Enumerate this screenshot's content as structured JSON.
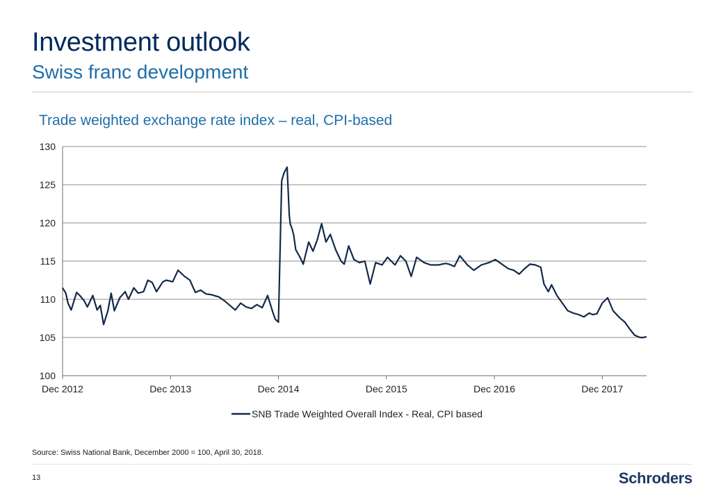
{
  "header": {
    "title": "Investment outlook",
    "subtitle": "Swiss franc development"
  },
  "chart_title": "Trade weighted exchange rate index – real, CPI-based",
  "colors": {
    "line": "#13294b",
    "grid": "#8c8c8c",
    "accent": "#1f6ea8"
  },
  "chart_data": {
    "type": "line",
    "title": "Trade weighted exchange rate index – real, CPI-based",
    "xlabel": "",
    "ylabel": "",
    "ylim": [
      100,
      130
    ],
    "yticks": [
      100,
      105,
      110,
      115,
      120,
      125,
      130
    ],
    "xlim": [
      2012.92,
      2018.33
    ],
    "xtick_labels": [
      "Dec 2012",
      "Dec 2013",
      "Dec 2014",
      "Dec 2015",
      "Dec 2016",
      "Dec 2017"
    ],
    "xtick_positions": [
      2012.92,
      2013.92,
      2014.92,
      2015.92,
      2016.92,
      2017.92
    ],
    "grid": true,
    "legend_position": "bottom",
    "series": [
      {
        "name": "SNB Trade Weighted Overall Index - Real, CPI based",
        "x": [
          2012.92,
          2012.95,
          2012.97,
          2013.0,
          2013.05,
          2013.08,
          2013.12,
          2013.15,
          2013.2,
          2013.24,
          2013.27,
          2013.3,
          2013.34,
          2013.37,
          2013.4,
          2013.45,
          2013.5,
          2013.53,
          2013.58,
          2013.62,
          2013.67,
          2013.71,
          2013.75,
          2013.79,
          2013.85,
          2013.88,
          2013.94,
          2013.99,
          2014.05,
          2014.1,
          2014.15,
          2014.2,
          2014.25,
          2014.3,
          2014.37,
          2014.42,
          2014.47,
          2014.52,
          2014.57,
          2014.62,
          2014.67,
          2014.72,
          2014.77,
          2014.82,
          2014.87,
          2014.89,
          2014.92,
          2014.95,
          2014.97,
          2015.0,
          2015.02,
          2015.03,
          2015.04,
          2015.06,
          2015.08,
          2015.12,
          2015.15,
          2015.2,
          2015.24,
          2015.28,
          2015.32,
          2015.36,
          2015.4,
          2015.45,
          2015.5,
          2015.53,
          2015.57,
          2015.62,
          2015.67,
          2015.72,
          2015.77,
          2015.82,
          2015.88,
          2015.93,
          2016.0,
          2016.05,
          2016.1,
          2016.15,
          2016.2,
          2016.27,
          2016.33,
          2016.4,
          2016.47,
          2016.5,
          2016.55,
          2016.6,
          2016.67,
          2016.73,
          2016.8,
          2016.87,
          2016.93,
          2017.0,
          2017.05,
          2017.1,
          2017.15,
          2017.2,
          2017.25,
          2017.3,
          2017.35,
          2017.38,
          2017.42,
          2017.45,
          2017.5,
          2017.55,
          2017.6,
          2017.65,
          2017.7,
          2017.75,
          2017.8,
          2017.83,
          2017.87,
          2017.92,
          2017.97,
          2018.02,
          2018.08,
          2018.13,
          2018.18,
          2018.22,
          2018.27,
          2018.3,
          2018.33
        ],
        "values": [
          111.5,
          110.8,
          109.5,
          108.6,
          110.9,
          110.5,
          109.8,
          109.0,
          110.5,
          108.6,
          109.2,
          106.7,
          108.5,
          110.8,
          108.5,
          110.2,
          111.0,
          110.0,
          111.5,
          110.8,
          111.0,
          112.5,
          112.2,
          111.0,
          112.3,
          112.5,
          112.3,
          113.8,
          113.0,
          112.5,
          110.9,
          111.2,
          110.7,
          110.6,
          110.3,
          109.8,
          109.2,
          108.6,
          109.5,
          109.0,
          108.8,
          109.3,
          108.9,
          110.5,
          108.2,
          107.4,
          107.0,
          125.5,
          126.5,
          127.3,
          121.0,
          119.8,
          119.5,
          118.5,
          116.5,
          115.5,
          114.6,
          117.5,
          116.3,
          117.8,
          119.9,
          117.5,
          118.5,
          116.5,
          115.0,
          114.6,
          117.0,
          115.2,
          114.8,
          115.0,
          112.0,
          114.8,
          114.5,
          115.5,
          114.5,
          115.7,
          115.0,
          113.0,
          115.5,
          114.8,
          114.5,
          114.5,
          114.7,
          114.6,
          114.3,
          115.7,
          114.5,
          113.8,
          114.5,
          114.8,
          115.2,
          114.5,
          114.0,
          113.8,
          113.3,
          114.0,
          114.6,
          114.5,
          114.2,
          112.0,
          111.0,
          111.9,
          110.5,
          109.5,
          108.5,
          108.2,
          108.0,
          107.7,
          108.2,
          108.0,
          108.1,
          109.5,
          110.2,
          108.5,
          107.6,
          107.0,
          106.0,
          105.3,
          105.0,
          105.0,
          105.1
        ]
      }
    ]
  },
  "source": "Source: Swiss National Bank, December 2000 = 100, April 30, 2018.",
  "page_number": "13",
  "logo_text": "Schroders"
}
